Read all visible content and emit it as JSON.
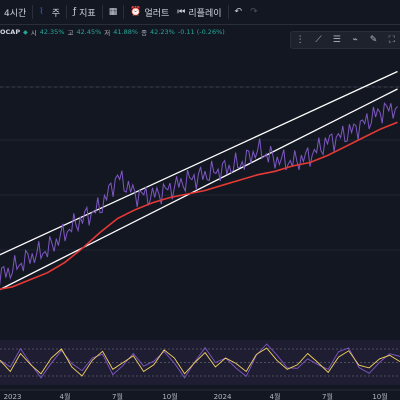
{
  "toolbar": {
    "interval": "4시간",
    "bar_style_icon": "candle-icon",
    "style_label": "주",
    "indicators_label": "지표",
    "layout_icon": "grid-icon",
    "alert_label": "얼러트",
    "replay_label": "리플레이",
    "undo_icon": "undo-icon",
    "redo_icon": "redo-icon"
  },
  "legend": {
    "symbol": "OCAP",
    "open_label": "시",
    "open_value": "42.35%",
    "high_label": "고",
    "high_value": "42.45%",
    "low_label": "저",
    "low_value": "41.88%",
    "close_label": "종",
    "close_value": "42.23%",
    "change_value": "-0.11 (-0.26%)"
  },
  "drawing_tools": [
    "cursor-icon",
    "trend-line-icon",
    "fib-icon",
    "pattern-icon",
    "brush-icon",
    "text-icon"
  ],
  "colors": {
    "background": "#131722",
    "price": "#7e57c2",
    "moving_average": "#e53935",
    "channel": "#ffffff",
    "oscillator": "#f4d35e"
  },
  "chart_data": {
    "type": "line",
    "x_tick_labels": [
      "2023",
      "4월",
      "7월",
      "10월",
      "2024",
      "4월",
      "7월",
      "10월"
    ],
    "channel": {
      "upper": [
        {
          "t": "2022-12",
          "y": 35.6
        },
        {
          "t": "2024-11",
          "y": 46.2
        }
      ],
      "lower": [
        {
          "t": "2022-12",
          "y": 33.6
        },
        {
          "t": "2024-11",
          "y": 45.2
        }
      ]
    },
    "series": [
      {
        "type": "line",
        "x": [
          "2022-12",
          "2023-01",
          "2023-02",
          "2023-03",
          "2023-04",
          "2023-05",
          "2023-06",
          "2023-07",
          "2023-08",
          "2023-09",
          "2023-10",
          "2023-11",
          "2023-12",
          "2024-01",
          "2024-02",
          "2024-03",
          "2024-04",
          "2024-05",
          "2024-06",
          "2024-07",
          "2024-08",
          "2024-09",
          "2024-10",
          "2024-11"
        ],
        "values": [
          34.4,
          34.9,
          35.6,
          36.0,
          37.0,
          37.8,
          38.4,
          40.2,
          39.2,
          39.1,
          39.5,
          40.0,
          40.3,
          40.6,
          40.9,
          41.7,
          41.2,
          41.0,
          41.4,
          42.2,
          42.6,
          43.2,
          43.9,
          44.2
        ]
      },
      {
        "type": "line",
        "x": [
          "2022-12",
          "2023-01",
          "2023-02",
          "2023-03",
          "2023-04",
          "2023-05",
          "2023-06",
          "2023-07",
          "2023-08",
          "2023-09",
          "2023-10",
          "2023-11",
          "2023-12",
          "2024-01",
          "2024-02",
          "2024-03",
          "2024-04",
          "2024-05",
          "2024-06",
          "2024-07",
          "2024-08",
          "2024-09",
          "2024-10",
          "2024-11"
        ],
        "values": [
          33.7,
          33.9,
          34.3,
          34.7,
          35.3,
          36.1,
          37.0,
          37.8,
          38.3,
          38.7,
          39.0,
          39.2,
          39.4,
          39.7,
          40.0,
          40.3,
          40.5,
          40.8,
          41.0,
          41.4,
          41.9,
          42.4,
          42.9,
          43.3
        ]
      }
    ],
    "oscillator": {
      "levels": [
        20,
        50,
        80
      ],
      "values": [
        55,
        30,
        70,
        45,
        25,
        60,
        80,
        40,
        20,
        55,
        75,
        35,
        50,
        65,
        30,
        45,
        78,
        60,
        25,
        50,
        72,
        40,
        60,
        48,
        30,
        68,
        82,
        55,
        35,
        45,
        70,
        50,
        28,
        62,
        76,
        44,
        38,
        58,
        66,
        52
      ]
    }
  }
}
